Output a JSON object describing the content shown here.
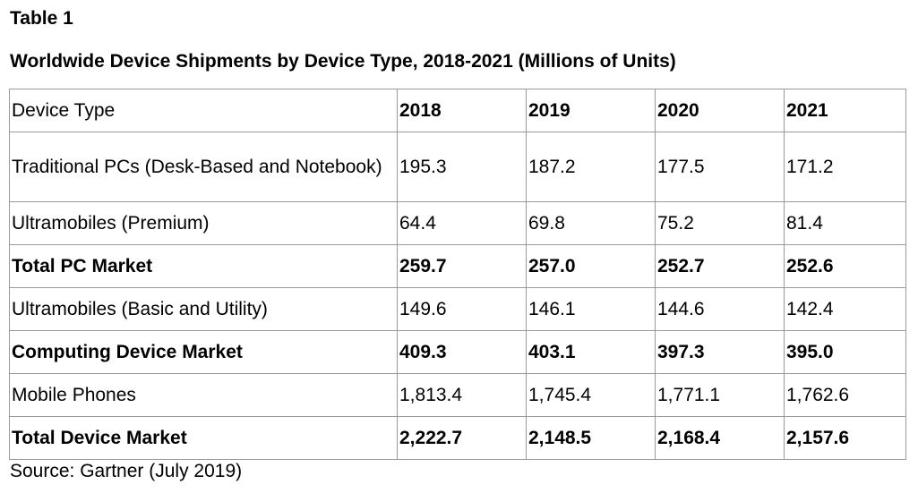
{
  "caption": {
    "label": "Table 1",
    "title": "Worldwide Device Shipments by Device Type, 2018-2021 (Millions of Units)"
  },
  "table": {
    "headers": [
      "Device Type",
      "2018",
      "2019",
      "2020",
      "2021"
    ],
    "rows": [
      {
        "cells": [
          "Traditional PCs (Desk-Based and Notebook)",
          "195.3",
          "187.2",
          "177.5",
          "171.2"
        ]
      },
      {
        "cells": [
          "Ultramobiles (Premium)",
          "64.4",
          "69.8",
          "75.2",
          "81.4"
        ]
      },
      {
        "cells": [
          "Total PC Market",
          "259.7",
          "257.0",
          "252.7",
          "252.6"
        ]
      },
      {
        "cells": [
          "Ultramobiles (Basic and Utility)",
          "149.6",
          "146.1",
          "144.6",
          "142.4"
        ]
      },
      {
        "cells": [
          "Computing Device Market",
          "409.3",
          "403.1",
          "397.3",
          "395.0"
        ]
      },
      {
        "cells": [
          "Mobile Phones",
          "1,813.4",
          "1,745.4",
          "1,771.1",
          "1,762.6"
        ]
      },
      {
        "cells": [
          "Total Device Market",
          "2,222.7",
          "2,148.5",
          "2,168.4",
          "2,157.6"
        ]
      }
    ]
  },
  "source": "Source: Gartner (July 2019)"
}
